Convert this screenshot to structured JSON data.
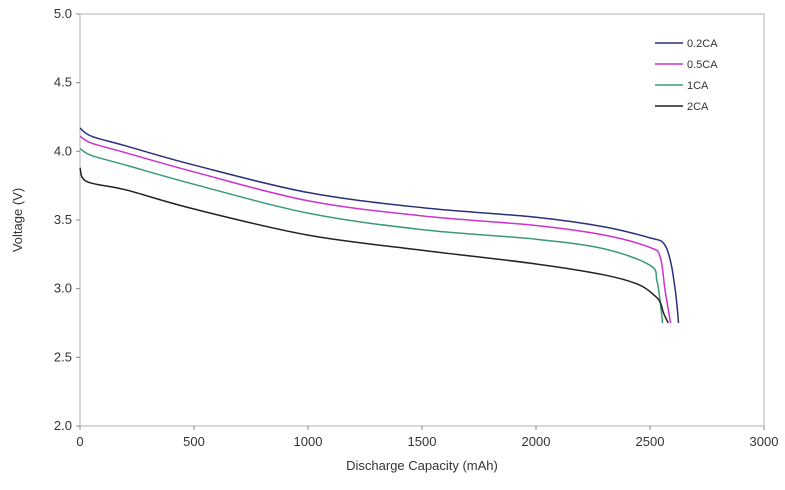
{
  "chart_data": {
    "type": "line",
    "xlabel": "Discharge Capacity (mAh)",
    "ylabel": "Voltage (V)",
    "xlim": [
      0,
      3000
    ],
    "ylim": [
      2.0,
      5.0
    ],
    "x_ticks": [
      0,
      500,
      1000,
      1500,
      2000,
      2500,
      3000
    ],
    "y_ticks": [
      2.0,
      2.5,
      3.0,
      3.5,
      4.0,
      4.5,
      5.0
    ],
    "y_tick_labels": [
      "2.0",
      "2.5",
      "3.0",
      "3.5",
      "4.0",
      "4.5",
      "5.0"
    ],
    "grid": false,
    "legend_position": "top-right",
    "series": [
      {
        "name": "0.2CA",
        "color": "#2a2f7a",
        "points": [
          [
            0,
            4.17
          ],
          [
            50,
            4.11
          ],
          [
            200,
            4.04
          ],
          [
            500,
            3.9
          ],
          [
            1000,
            3.7
          ],
          [
            1500,
            3.59
          ],
          [
            2000,
            3.52
          ],
          [
            2300,
            3.45
          ],
          [
            2500,
            3.37
          ],
          [
            2560,
            3.33
          ],
          [
            2590,
            3.2
          ],
          [
            2610,
            3.0
          ],
          [
            2620,
            2.85
          ],
          [
            2625,
            2.75
          ]
        ]
      },
      {
        "name": "0.5CA",
        "color": "#cc33cc",
        "points": [
          [
            0,
            4.11
          ],
          [
            50,
            4.06
          ],
          [
            200,
            3.99
          ],
          [
            500,
            3.85
          ],
          [
            1000,
            3.64
          ],
          [
            1500,
            3.53
          ],
          [
            2000,
            3.46
          ],
          [
            2300,
            3.39
          ],
          [
            2500,
            3.3
          ],
          [
            2545,
            3.23
          ],
          [
            2565,
            3.0
          ],
          [
            2580,
            2.85
          ],
          [
            2590,
            2.75
          ]
        ]
      },
      {
        "name": "1CA",
        "color": "#3a9a78",
        "points": [
          [
            0,
            4.02
          ],
          [
            50,
            3.97
          ],
          [
            200,
            3.9
          ],
          [
            500,
            3.76
          ],
          [
            1000,
            3.55
          ],
          [
            1500,
            3.43
          ],
          [
            2000,
            3.36
          ],
          [
            2300,
            3.29
          ],
          [
            2500,
            3.17
          ],
          [
            2530,
            3.06
          ],
          [
            2545,
            2.9
          ],
          [
            2555,
            2.75
          ]
        ]
      },
      {
        "name": "2CA",
        "color": "#222222",
        "points": [
          [
            0,
            3.88
          ],
          [
            30,
            3.78
          ],
          [
            200,
            3.72
          ],
          [
            500,
            3.58
          ],
          [
            1000,
            3.39
          ],
          [
            1500,
            3.28
          ],
          [
            2000,
            3.18
          ],
          [
            2300,
            3.1
          ],
          [
            2450,
            3.03
          ],
          [
            2520,
            2.95
          ],
          [
            2545,
            2.9
          ],
          [
            2560,
            2.82
          ],
          [
            2580,
            2.75
          ]
        ]
      }
    ]
  }
}
